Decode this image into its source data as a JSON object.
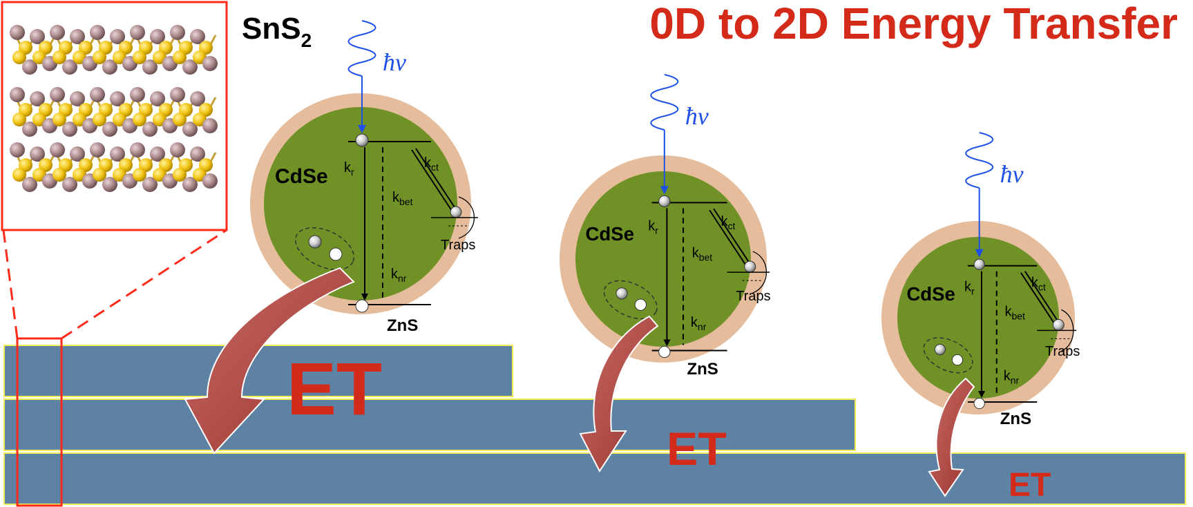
{
  "title": "0D to 2D Energy Transfer",
  "material": {
    "base": "SnS",
    "subscript": "2"
  },
  "colors": {
    "title": "#d42a1a",
    "et_arrow": "#b8453f",
    "photon": "#1e50e6",
    "layer_fill": "#5e82a3",
    "layer_edge": "#f0ec5a",
    "shell": "#e6bd9c",
    "core": "#6f9126",
    "inset_border": "#ff2a1a",
    "atom_s": "#f2c516",
    "atom_sn": "#a9878a"
  },
  "photon_label": {
    "h": "ħ",
    "nu": "v"
  },
  "dots": [
    {
      "name": "dot-1",
      "core_label": "CdSe",
      "shell_label": "ZnS",
      "kr": "r",
      "knr": "nr",
      "kct": "ct",
      "kbet": "bet",
      "traps": "Traps"
    },
    {
      "name": "dot-2",
      "core_label": "CdSe",
      "shell_label": "ZnS",
      "kr": "r",
      "knr": "nr",
      "kct": "ct",
      "kbet": "bet",
      "traps": "Traps"
    },
    {
      "name": "dot-3",
      "core_label": "CdSe",
      "shell_label": "ZnS",
      "kr": "r",
      "knr": "nr",
      "kct": "ct",
      "kbet": "bet",
      "traps": "Traps"
    }
  ],
  "rate_letter": "k",
  "et_labels": [
    "ET",
    "ET",
    "ET"
  ]
}
